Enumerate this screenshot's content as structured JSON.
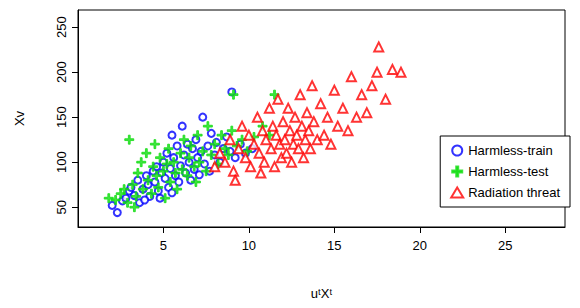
{
  "chart_data": {
    "type": "scatter",
    "x_label": "uᵗXᵗ",
    "y_label": "Xv",
    "xlim": [
      0,
      28.5
    ],
    "ylim": [
      28,
      269
    ],
    "xticks": [
      5,
      10,
      15,
      20,
      25
    ],
    "yticks": [
      50,
      100,
      150,
      200,
      250
    ],
    "grid": false,
    "legend": "bottomright",
    "series": [
      {
        "name": "Harmless-train",
        "color": "#0000ff",
        "marker": "circle",
        "x": [
          2.0,
          2.3,
          2.6,
          2.8,
          3.0,
          3.1,
          3.3,
          3.5,
          3.6,
          3.8,
          4.0,
          4.1,
          4.2,
          4.4,
          4.5,
          4.6,
          4.7,
          4.9,
          5.0,
          5.1,
          5.2,
          5.3,
          5.4,
          5.5,
          5.6,
          5.7,
          5.8,
          5.9,
          6.0,
          6.1,
          6.2,
          6.3,
          6.4,
          6.5,
          6.6,
          6.7,
          6.8,
          6.9,
          7.0,
          7.1,
          7.2,
          7.3,
          7.4,
          7.6,
          7.7,
          7.8,
          8.0,
          8.1,
          8.3,
          8.5,
          8.7,
          8.9,
          9.0,
          9.2,
          9.5,
          9.8,
          10.2,
          3.9,
          4.8,
          5.5
        ],
        "values": [
          52,
          44,
          57,
          60,
          68,
          72,
          63,
          80,
          55,
          70,
          85,
          75,
          62,
          90,
          78,
          95,
          68,
          88,
          100,
          82,
          110,
          72,
          93,
          130,
          105,
          85,
          118,
          78,
          96,
          140,
          108,
          88,
          120,
          100,
          80,
          115,
          92,
          125,
          105,
          86,
          112,
          150,
          98,
          118,
          90,
          132,
          108,
          122,
          100,
          115,
          128,
          112,
          178,
          105,
          120,
          110,
          115,
          58,
          60,
          66
        ]
      },
      {
        "name": "Harmless-test",
        "color": "#11dd11",
        "marker": "plus",
        "x": [
          1.8,
          2.2,
          2.5,
          2.7,
          2.9,
          3.0,
          3.2,
          3.4,
          3.5,
          3.7,
          3.8,
          4.0,
          4.1,
          4.3,
          4.4,
          4.6,
          4.7,
          4.8,
          5.0,
          5.1,
          5.2,
          5.3,
          5.4,
          5.6,
          5.7,
          5.8,
          6.0,
          6.1,
          6.2,
          6.4,
          6.5,
          6.6,
          6.8,
          7.0,
          7.1,
          7.3,
          7.5,
          7.6,
          7.8,
          8.0,
          8.2,
          8.4,
          8.6,
          8.8,
          9.0,
          9.1,
          9.3,
          9.6,
          9.9,
          10.3,
          10.8,
          11.5,
          11.2,
          3.3,
          4.5,
          6.9
        ],
        "values": [
          60,
          58,
          65,
          70,
          55,
          125,
          75,
          62,
          88,
          100,
          70,
          110,
          80,
          65,
          95,
          85,
          72,
          105,
          90,
          60,
          98,
          115,
          78,
          100,
          88,
          70,
          110,
          92,
          125,
          85,
          105,
          118,
          95,
          130,
          100,
          112,
          90,
          140,
          108,
          120,
          98,
          130,
          115,
          108,
          135,
          175,
          118,
          125,
          112,
          128,
          140,
          175,
          130,
          50,
          120,
          78
        ]
      },
      {
        "name": "Radiation threat",
        "color": "#ff0000",
        "marker": "triangle",
        "x": [
          8.0,
          8.3,
          8.6,
          8.9,
          9.1,
          9.4,
          9.6,
          9.8,
          10.0,
          10.1,
          10.3,
          10.5,
          10.6,
          10.8,
          10.9,
          11.0,
          11.2,
          11.3,
          11.4,
          11.5,
          11.6,
          11.7,
          11.8,
          11.9,
          12.0,
          12.1,
          12.2,
          12.3,
          12.4,
          12.5,
          12.6,
          12.7,
          12.8,
          12.9,
          13.0,
          13.1,
          13.2,
          13.3,
          13.4,
          13.5,
          13.6,
          13.7,
          13.8,
          14.0,
          14.2,
          14.4,
          14.6,
          14.8,
          15.0,
          15.2,
          15.5,
          15.8,
          16.0,
          16.3,
          16.6,
          16.9,
          17.2,
          17.5,
          17.6,
          18.0,
          18.4,
          18.9,
          9.2,
          10.7
        ],
        "values": [
          95,
          110,
          100,
          125,
          90,
          115,
          140,
          105,
          130,
          95,
          120,
          150,
          110,
          135,
          100,
          125,
          160,
          115,
          140,
          95,
          130,
          170,
          120,
          105,
          145,
          125,
          110,
          160,
          135,
          100,
          120,
          150,
          130,
          115,
          175,
          140,
          105,
          125,
          155,
          135,
          115,
          185,
          145,
          125,
          165,
          130,
          150,
          120,
          180,
          140,
          160,
          135,
          195,
          150,
          175,
          155,
          185,
          200,
          228,
          170,
          203,
          200,
          80,
          88
        ]
      }
    ]
  }
}
